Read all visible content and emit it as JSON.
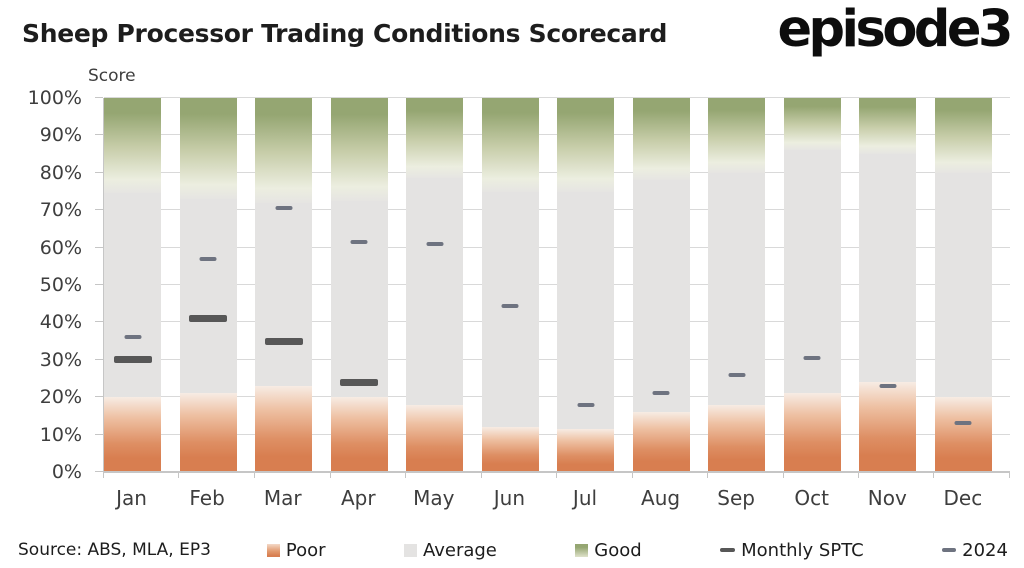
{
  "header": {
    "logo": "episode3"
  },
  "footer": {
    "source": "Source: ABS, MLA, EP3"
  },
  "colors": {
    "poor_bottom": "#d87e50",
    "poor_top": "#f7ece4",
    "average": "#e4e3e2",
    "good_top": "#95a672",
    "sptc_marker": "#575757",
    "marker_2024": "#6e7380",
    "gridline": "#d9d9d9",
    "axis": "#c6c6c6",
    "text_dark": "#1d1d1d",
    "text_axis": "#3e3e3e"
  },
  "chart_data": {
    "type": "bar",
    "stacked": true,
    "title": "Sheep Processor Trading Conditions Scorecard",
    "ylabel": "Score",
    "xlabel": "",
    "ylim": [
      0,
      100
    ],
    "grid": true,
    "legend_position": "bottom",
    "y_tick_labels": [
      "0%",
      "10%",
      "20%",
      "30%",
      "40%",
      "50%",
      "60%",
      "70%",
      "80%",
      "90%",
      "100%"
    ],
    "categories": [
      "Jan",
      "Feb",
      "Mar",
      "Apr",
      "May",
      "Jun",
      "Jul",
      "Aug",
      "Sep",
      "Oct",
      "Nov",
      "Dec"
    ],
    "series": [
      {
        "name": "Poor",
        "type": "segment",
        "swatch": "poor",
        "color": "#d87e50",
        "values": [
          20,
          21,
          23,
          20,
          18,
          12,
          11.5,
          16,
          18,
          21,
          24,
          20
        ]
      },
      {
        "name": "Average",
        "type": "segment",
        "swatch": "average",
        "color": "#e4e3e2",
        "values": [
          54.5,
          52,
          49,
          52.5,
          60.5,
          63,
          63.5,
          62,
          62,
          65,
          61,
          60
        ]
      },
      {
        "name": "Good",
        "type": "segment",
        "swatch": "good",
        "color": "#95a672",
        "values": [
          25.5,
          27,
          28,
          27.5,
          21.5,
          25,
          25,
          22,
          20,
          14,
          15,
          20
        ]
      },
      {
        "name": "Monthly SPTC",
        "type": "marker",
        "swatch": "dash-dark",
        "color": "#575757",
        "values": [
          30,
          41,
          35,
          24,
          null,
          null,
          null,
          null,
          null,
          null,
          null,
          null
        ]
      },
      {
        "name": "2024",
        "type": "marker",
        "swatch": "dash-slate",
        "color": "#6e7380",
        "values": [
          36,
          57,
          70.5,
          61.5,
          61,
          44.5,
          18,
          21,
          26,
          30.5,
          23,
          13
        ]
      }
    ]
  }
}
